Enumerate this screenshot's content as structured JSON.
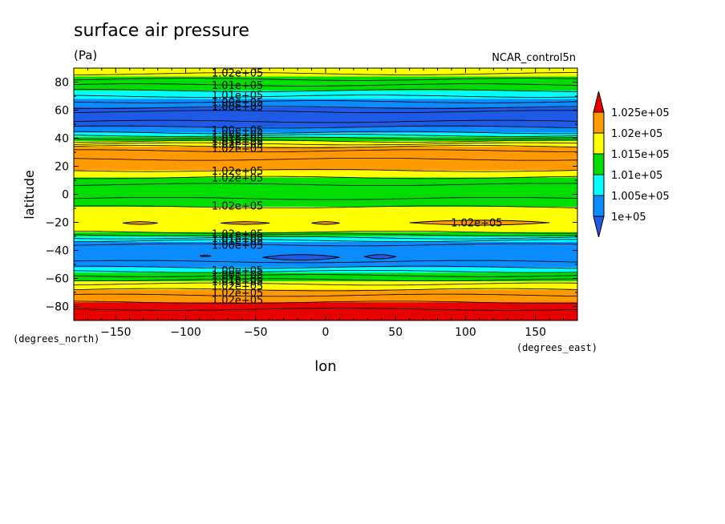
{
  "chart_data": {
    "type": "heatmap",
    "title": "surface air pressure",
    "units": "(Pa)",
    "dataset": "NCAR_control5n",
    "xlabel": "lon",
    "ylabel": "latitude",
    "x_units": "(degrees_east)",
    "y_units": "(degrees_north)",
    "xlim": [
      -180,
      180
    ],
    "ylim": [
      -90,
      90
    ],
    "x_ticks": [
      -150,
      -100,
      -50,
      0,
      50,
      100,
      150
    ],
    "x_tick_labels": [
      "−150",
      "−100",
      "−50",
      "0",
      "50",
      "100",
      "150"
    ],
    "y_ticks": [
      80,
      60,
      40,
      20,
      0,
      -20,
      -40,
      -60,
      -80
    ],
    "y_tick_labels": [
      "80",
      "60",
      "40",
      "20",
      "0",
      "−20",
      "−40",
      "−60",
      "−80"
    ],
    "legend": {
      "placement": "right",
      "labels": [
        "1.025e+05",
        "1.02e+05",
        "1.015e+05",
        "1.01e+05",
        "1.005e+05",
        "1e+05"
      ],
      "colors_top_to_bottom": [
        "#e60000",
        "#ff9900",
        "#ffff00",
        "#00dd00",
        "#00ffff",
        "#0a8cff",
        "#1e5ae6"
      ]
    },
    "bands": [
      {
        "lat": [
          84,
          90
        ],
        "level": "1.015e+05-1.02e+05",
        "color": "#ffff00"
      },
      {
        "lat": [
          74,
          84
        ],
        "level": "1.01e+05-1.015e+05",
        "color": "#00dd00"
      },
      {
        "lat": [
          68,
          74
        ],
        "level": "1.005e+05-1.01e+05",
        "color": "#00ffff"
      },
      {
        "lat": [
          62,
          68
        ],
        "level": "1e+05-1.005e+05",
        "color": "#0a8cff"
      },
      {
        "lat": [
          48,
          62
        ],
        "level": "<1e+05",
        "color": "#1e5ae6"
      },
      {
        "lat": [
          44,
          48
        ],
        "level": "1e+05-1.005e+05",
        "color": "#0a8cff"
      },
      {
        "lat": [
          41,
          44
        ],
        "level": "1.005e+05-1.01e+05",
        "color": "#00ffff"
      },
      {
        "lat": [
          38,
          41
        ],
        "level": "1.01e+05-1.015e+05",
        "color": "#00dd00"
      },
      {
        "lat": [
          34,
          38
        ],
        "level": "1.015e+05-1.02e+05",
        "color": "#ffff00"
      },
      {
        "lat": [
          17,
          34
        ],
        "level": "1.02e+05-1.025e+05",
        "color": "#ff9900"
      },
      {
        "lat": [
          12,
          17
        ],
        "level": "1.015e+05-1.02e+05",
        "color": "#ffff00"
      },
      {
        "lat": [
          -9,
          12
        ],
        "level": "1.01e+05-1.015e+05",
        "color": "#00dd00"
      },
      {
        "lat": [
          -27,
          -9
        ],
        "level": "1.015e+05-1.02e+05",
        "color": "#ffff00"
      },
      {
        "lat": [
          -30,
          -27
        ],
        "level": "1.01e+05-1.015e+05",
        "color": "#00dd00"
      },
      {
        "lat": [
          -34,
          -30
        ],
        "level": "1.005e+05-1.01e+05",
        "color": "#00ffff"
      },
      {
        "lat": [
          -52,
          -34
        ],
        "level": "1e+05-1.005e+05",
        "color": "#0a8cff"
      },
      {
        "lat": [
          -56,
          -52
        ],
        "level": "1.005e+05-1.01e+05",
        "color": "#00ffff"
      },
      {
        "lat": [
          -62,
          -56
        ],
        "level": "1.01e+05-1.015e+05",
        "color": "#00dd00"
      },
      {
        "lat": [
          -68,
          -62
        ],
        "level": "1.015e+05-1.02e+05",
        "color": "#ffff00"
      },
      {
        "lat": [
          -77,
          -68
        ],
        "level": "1.02e+05-1.025e+05",
        "color": "#ff9900"
      },
      {
        "lat": [
          -90,
          -77
        ],
        "level": ">1.025e+05",
        "color": "#e60000"
      }
    ],
    "contour_lines_lat": [
      86,
      82,
      78,
      74,
      70,
      66,
      62,
      59,
      52,
      48,
      44,
      42,
      40,
      38,
      36,
      34,
      31,
      25,
      17,
      12,
      7,
      -3,
      -9,
      -27,
      -29,
      -31,
      -33,
      -36,
      -48,
      -52,
      -55,
      -58,
      -61,
      -64,
      -68,
      -72,
      -77,
      -82
    ],
    "cells": [
      {
        "lon": [
          -145,
          -120
        ],
        "lat": [
          -21.5,
          -19.5
        ],
        "color": "#ff9900"
      },
      {
        "lon": [
          -75,
          -40
        ],
        "lat": [
          -21.5,
          -19.5
        ],
        "color": "#ff9900"
      },
      {
        "lon": [
          -10,
          10
        ],
        "lat": [
          -21.5,
          -19.5
        ],
        "color": "#ff9900"
      },
      {
        "lon": [
          60,
          160
        ],
        "lat": [
          -22,
          -18.5
        ],
        "color": "#ff9900"
      },
      {
        "lon": [
          -45,
          10
        ],
        "lat": [
          -47,
          -43
        ],
        "color": "#1e5ae6"
      },
      {
        "lon": [
          28,
          50
        ],
        "lat": [
          -46,
          -43
        ],
        "color": "#1e5ae6"
      },
      {
        "lon": [
          -90,
          -82
        ],
        "lat": [
          -44.5,
          -43.5
        ],
        "color": "#1e5ae6"
      }
    ],
    "contour_labels": [
      {
        "text": "1.02e+05",
        "lon": -63,
        "lat": 87
      },
      {
        "text": "1.01e+05",
        "lon": -63,
        "lat": 78
      },
      {
        "text": "1.01e+05",
        "lon": -63,
        "lat": 71
      },
      {
        "text": "1.00e+05",
        "lon": -63,
        "lat": 66
      },
      {
        "text": "1.00e+05",
        "lon": -63,
        "lat": 63
      },
      {
        "text": "1.00e+05",
        "lon": -63,
        "lat": 46
      },
      {
        "text": "1.00e+05",
        "lon": -63,
        "lat": 43
      },
      {
        "text": "1.01e+05",
        "lon": -63,
        "lat": 40
      },
      {
        "text": "1.01e+05",
        "lon": -63,
        "lat": 38
      },
      {
        "text": "1.02e+05",
        "lon": -63,
        "lat": 36
      },
      {
        "text": "1.02e+05",
        "lon": -63,
        "lat": 33
      },
      {
        "text": "1.02e+05",
        "lon": -63,
        "lat": 17
      },
      {
        "text": "1.02e+05",
        "lon": -63,
        "lat": 12
      },
      {
        "text": "1.02e+05",
        "lon": -63,
        "lat": -8
      },
      {
        "text": "1.02e+05",
        "lon": 108,
        "lat": -20
      },
      {
        "text": "1.02e+05",
        "lon": -63,
        "lat": -28
      },
      {
        "text": "1.01e+05",
        "lon": -63,
        "lat": -31
      },
      {
        "text": "1.01e+05",
        "lon": -63,
        "lat": -33
      },
      {
        "text": "1.00e+05",
        "lon": -63,
        "lat": -36
      },
      {
        "text": "1.00e+05",
        "lon": -63,
        "lat": -54
      },
      {
        "text": "1.00e+05",
        "lon": -63,
        "lat": -57
      },
      {
        "text": "1.01e+05",
        "lon": -63,
        "lat": -60
      },
      {
        "text": "1.01e+05",
        "lon": -63,
        "lat": -62
      },
      {
        "text": "1.02e+05",
        "lon": -63,
        "lat": -65
      },
      {
        "text": "1.02e+05",
        "lon": -63,
        "lat": -70
      },
      {
        "text": "1.02e+05",
        "lon": -63,
        "lat": -75
      }
    ]
  }
}
